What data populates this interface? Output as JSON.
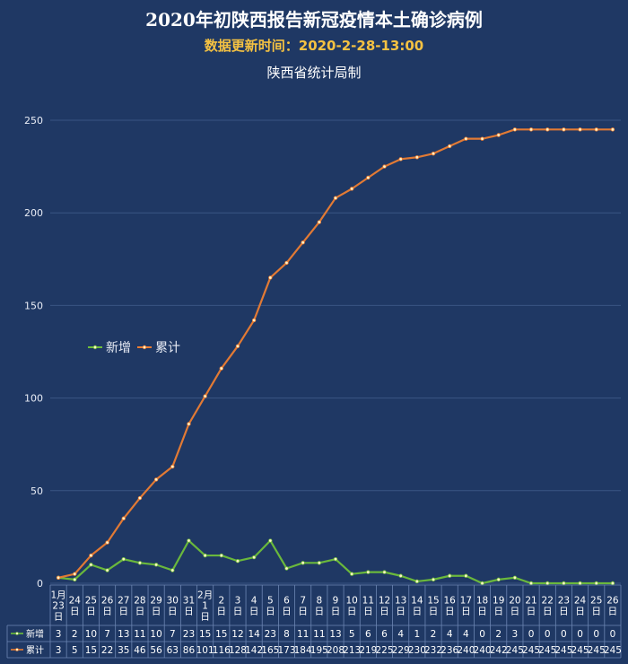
{
  "header": {
    "title": "2020年初陕西报告新冠疫情本土确诊病例",
    "update_time": "数据更新时间：2020-2-28-13:00",
    "source": "陕西省统计局制"
  },
  "chart_data": {
    "type": "line",
    "categories": [
      "1月23日",
      "24日",
      "25日",
      "26日",
      "27日",
      "28日",
      "29日",
      "30日",
      "31日",
      "2月1日",
      "2日",
      "3日",
      "4日",
      "5日",
      "6日",
      "7日",
      "8日",
      "9日",
      "10日",
      "11日",
      "12日",
      "13日",
      "14日",
      "15日",
      "16日",
      "17日",
      "18日",
      "19日",
      "20日",
      "21日",
      "22日",
      "23日",
      "24日",
      "25日",
      "26日"
    ],
    "series": [
      {
        "name": "新增",
        "color": "#6fbf3a",
        "values": [
          3,
          2,
          10,
          7,
          13,
          11,
          10,
          7,
          23,
          15,
          15,
          12,
          14,
          23,
          8,
          11,
          11,
          13,
          5,
          6,
          6,
          4,
          1,
          2,
          4,
          4,
          0,
          2,
          3,
          0,
          0,
          0,
          0,
          0,
          0
        ]
      },
      {
        "name": "累计",
        "color": "#ed7d31",
        "values": [
          3,
          5,
          15,
          22,
          35,
          46,
          56,
          63,
          86,
          101,
          116,
          128,
          142,
          165,
          173,
          184,
          195,
          208,
          213,
          219,
          225,
          229,
          230,
          232,
          236,
          240,
          240,
          242,
          245,
          245,
          245,
          245,
          245,
          245,
          245
        ]
      }
    ],
    "ylim": [
      0,
      250
    ],
    "yticks": [
      0,
      50,
      100,
      150,
      200,
      250
    ],
    "grid": true,
    "legend": "left",
    "data_table": true
  },
  "colors": {
    "background": "#1f3864",
    "gridline": "#3a5583",
    "title": "#ffffff",
    "subtitle": "#f5c242"
  }
}
